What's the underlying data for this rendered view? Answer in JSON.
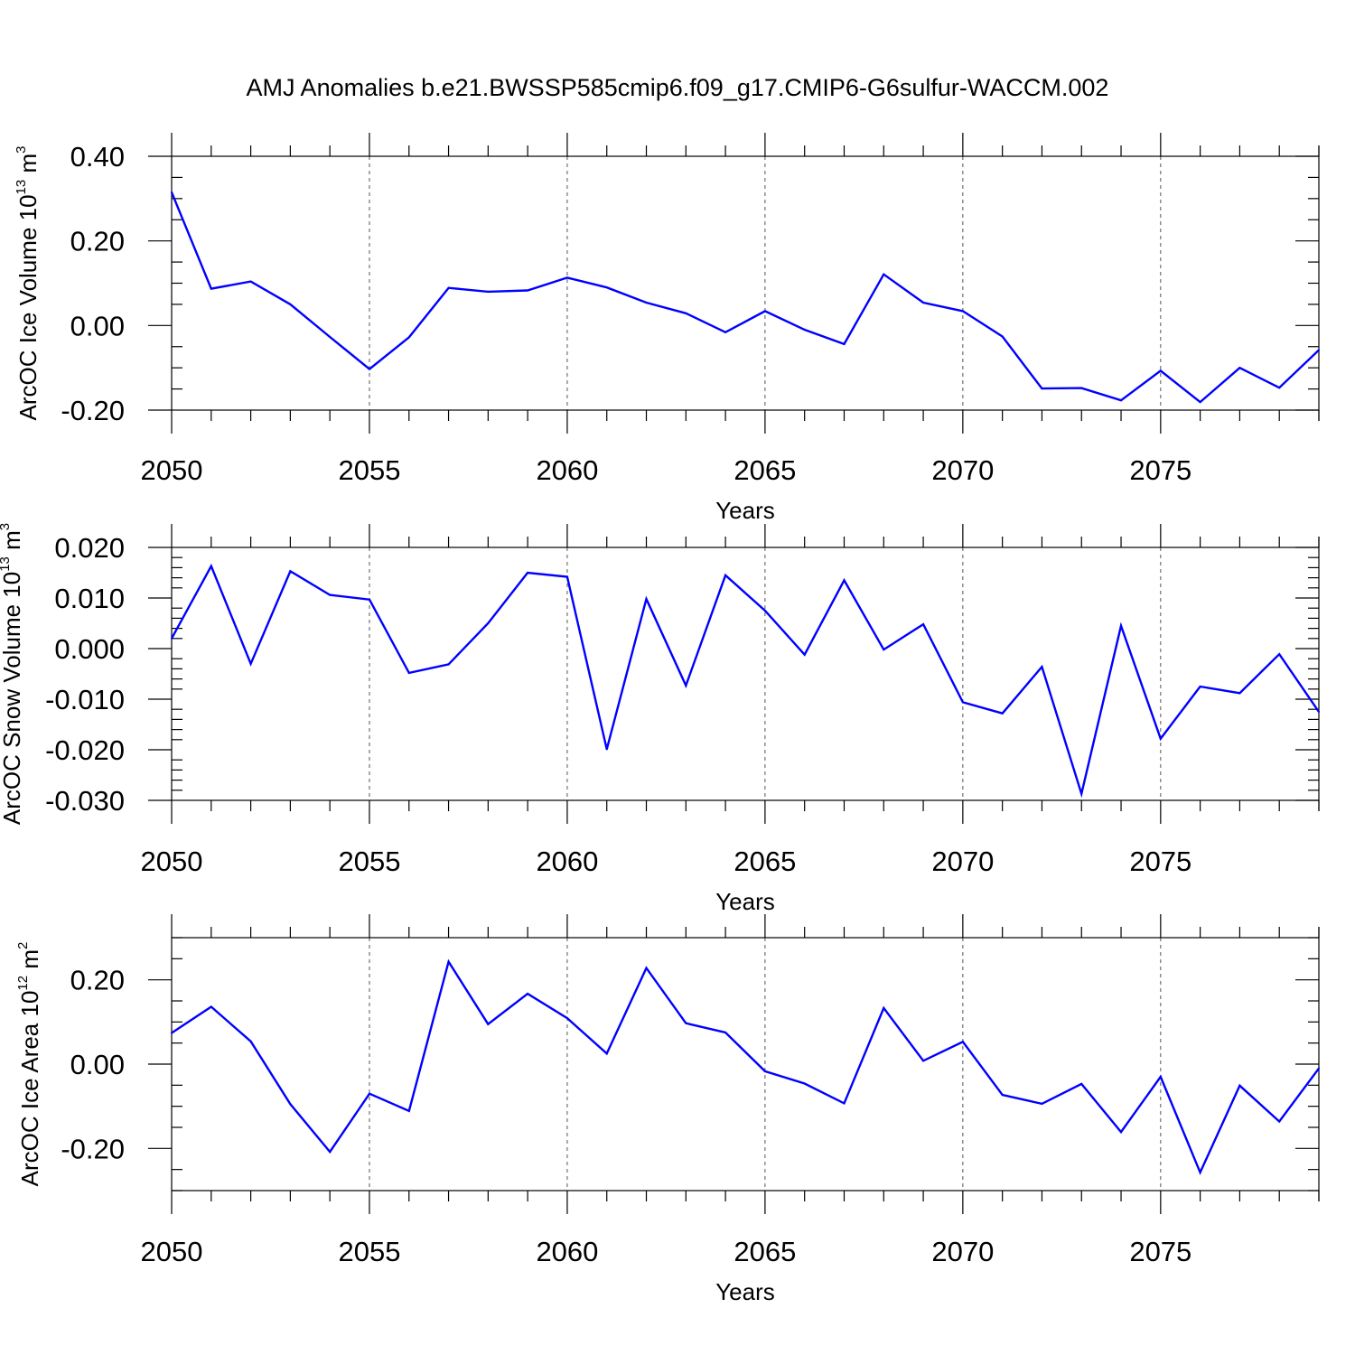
{
  "title": "AMJ Anomalies b.e21.BWSSP585cmip6.f09_g17.CMIP6-G6sulfur-WACCM.002",
  "colors": {
    "line": "#0000ff",
    "axis": "#000000",
    "grid": "#555555"
  },
  "chart_data": [
    {
      "type": "line",
      "xlabel": "Years",
      "ylabel": "ArcOC Ice Volume 10",
      "ylabel_exp": "13",
      "ylabel_unit": " m",
      "ylabel_unit_exp": "3",
      "xlim": [
        2050,
        2079
      ],
      "ylim": [
        -0.2,
        0.4
      ],
      "yticks": [
        -0.2,
        0.0,
        0.2,
        0.4
      ],
      "ytick_labels": [
        "-0.20",
        "0.00",
        "0.20",
        "0.40"
      ],
      "ytick_minor": 0.05,
      "xticks": [
        2050,
        2055,
        2060,
        2065,
        2070,
        2075
      ],
      "xtick_labels": [
        "2050",
        "2055",
        "2060",
        "2065",
        "2070",
        "2075"
      ],
      "grid": "vertical dashed at major x ticks",
      "x": [
        2050,
        2051,
        2052,
        2053,
        2054,
        2055,
        2056,
        2057,
        2058,
        2059,
        2060,
        2061,
        2062,
        2063,
        2064,
        2065,
        2066,
        2067,
        2068,
        2069,
        2070,
        2071,
        2072,
        2073,
        2074,
        2075,
        2076,
        2077,
        2078,
        2079
      ],
      "values": [
        0.315,
        0.087,
        0.104,
        0.05,
        -0.027,
        -0.103,
        -0.028,
        0.089,
        0.08,
        0.083,
        0.113,
        0.09,
        0.054,
        0.029,
        -0.016,
        0.034,
        -0.01,
        -0.044,
        0.121,
        0.054,
        0.034,
        -0.026,
        -0.149,
        -0.148,
        -0.177,
        -0.107,
        -0.181,
        -0.1,
        -0.147,
        -0.058
      ]
    },
    {
      "type": "line",
      "xlabel": "Years",
      "ylabel": "ArcOC Snow Volume 10",
      "ylabel_exp": "13",
      "ylabel_unit": " m",
      "ylabel_unit_exp": "3",
      "xlim": [
        2050,
        2079
      ],
      "ylim": [
        -0.03,
        0.02
      ],
      "yticks": [
        -0.03,
        -0.02,
        -0.01,
        0.0,
        0.01,
        0.02
      ],
      "ytick_labels": [
        "-0.030",
        "-0.020",
        "-0.010",
        "0.000",
        "0.010",
        "0.020"
      ],
      "ytick_minor": 0.002,
      "xticks": [
        2050,
        2055,
        2060,
        2065,
        2070,
        2075
      ],
      "xtick_labels": [
        "2050",
        "2055",
        "2060",
        "2065",
        "2070",
        "2075"
      ],
      "grid": "vertical dashed at major x ticks",
      "x": [
        2050,
        2051,
        2052,
        2053,
        2054,
        2055,
        2056,
        2057,
        2058,
        2059,
        2060,
        2061,
        2062,
        2063,
        2064,
        2065,
        2066,
        2067,
        2068,
        2069,
        2070,
        2071,
        2072,
        2073,
        2074,
        2075,
        2076,
        2077,
        2078,
        2079
      ],
      "values": [
        0.002,
        0.0163,
        -0.003,
        0.0153,
        0.0106,
        0.0097,
        -0.0048,
        -0.0031,
        0.005,
        0.015,
        0.0142,
        -0.0199,
        0.0098,
        -0.0073,
        0.0145,
        0.0075,
        -0.0012,
        0.0135,
        -0.0002,
        0.0048,
        -0.0106,
        -0.0128,
        -0.0036,
        -0.0287,
        0.0045,
        -0.0178,
        -0.0075,
        -0.0088,
        -0.0011,
        -0.0125
      ]
    },
    {
      "type": "line",
      "xlabel": "Years",
      "ylabel": "ArcOC Ice Area 10",
      "ylabel_exp": "12",
      "ylabel_unit": " m",
      "ylabel_unit_exp": "2",
      "xlim": [
        2050,
        2079
      ],
      "ylim": [
        -0.3,
        0.3
      ],
      "yticks": [
        -0.2,
        0.0,
        0.2
      ],
      "ytick_labels": [
        "-0.20",
        "0.00",
        "0.20"
      ],
      "ytick_minor": 0.05,
      "xticks": [
        2050,
        2055,
        2060,
        2065,
        2070,
        2075
      ],
      "xtick_labels": [
        "2050",
        "2055",
        "2060",
        "2065",
        "2070",
        "2075"
      ],
      "grid": "vertical dashed at major x ticks",
      "x": [
        2050,
        2051,
        2052,
        2053,
        2054,
        2055,
        2056,
        2057,
        2058,
        2059,
        2060,
        2061,
        2062,
        2063,
        2064,
        2065,
        2066,
        2067,
        2068,
        2069,
        2070,
        2071,
        2072,
        2073,
        2074,
        2075,
        2076,
        2077,
        2078,
        2079
      ],
      "values": [
        0.074,
        0.136,
        0.054,
        -0.095,
        -0.208,
        -0.07,
        -0.111,
        0.243,
        0.095,
        0.167,
        0.109,
        0.025,
        0.228,
        0.097,
        0.075,
        -0.017,
        -0.046,
        -0.093,
        0.133,
        0.008,
        0.053,
        -0.073,
        -0.094,
        -0.047,
        -0.161,
        -0.03,
        -0.257,
        -0.051,
        -0.136,
        -0.01
      ]
    }
  ]
}
